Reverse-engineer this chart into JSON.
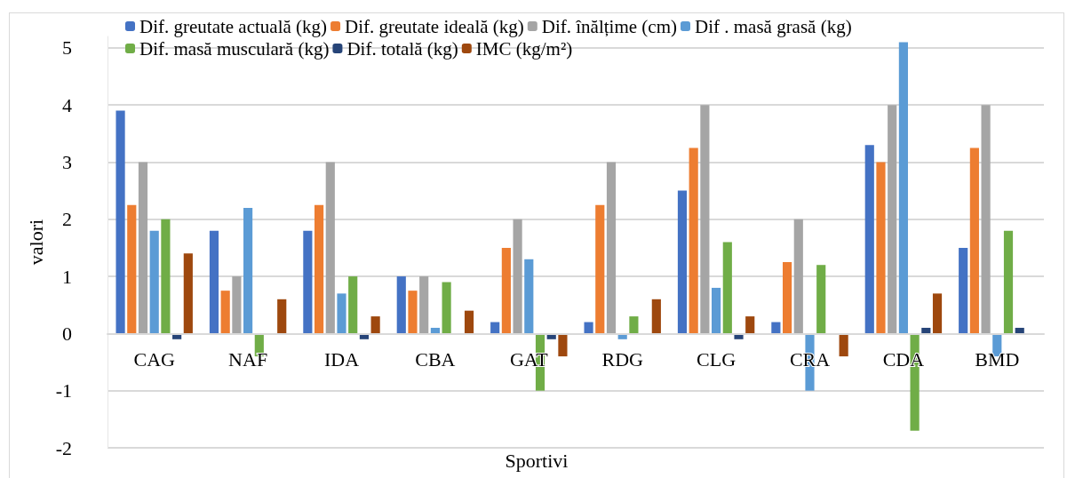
{
  "chart_data": {
    "type": "bar",
    "xlabel": "Sportivi",
    "ylabel": "valori",
    "categories": [
      "CAG",
      "NAF",
      "IDA",
      "CBA",
      "GAT",
      "RDG",
      "CLG",
      "CRA",
      "CDA",
      "BMD"
    ],
    "series": [
      {
        "name": "Dif. greutate actuală (kg)",
        "color": "#4472c4",
        "values": [
          3.9,
          1.8,
          1.8,
          1,
          0.2,
          0.2,
          2.5,
          0.2,
          3.3,
          1.5
        ]
      },
      {
        "name": "Dif. greutate ideală (kg)",
        "color": "#ed7d31",
        "values": [
          2.25,
          0.75,
          2.25,
          0.75,
          1.5,
          2.25,
          3.25,
          1.25,
          3,
          3.25
        ]
      },
      {
        "name": "Dif. înălțime (cm)",
        "color": "#a5a5a5",
        "values": [
          3,
          1,
          3,
          1,
          2,
          3,
          4,
          2,
          4,
          4
        ]
      },
      {
        "name": "Dif . masă grasă (kg)",
        "color": "#5b9bd5",
        "values": [
          1.8,
          2.2,
          0.7,
          0.1,
          1.3,
          -0.1,
          0.8,
          -1,
          5.1,
          -0.4
        ]
      },
      {
        "name": "Dif. masă musculară (kg)",
        "color": "#70ad47",
        "values": [
          2,
          -0.4,
          1,
          0.9,
          -1,
          0.3,
          1.6,
          1.2,
          -1.7,
          1.8
        ]
      },
      {
        "name": "Dif. totală (kg)",
        "color": "#264478",
        "values": [
          -0.1,
          0,
          -0.1,
          0,
          -0.1,
          0,
          -0.1,
          0,
          0.1,
          0.1
        ]
      },
      {
        "name": "IMC (kg/m²)",
        "color": "#9e480e",
        "values": [
          1.4,
          0.6,
          0.3,
          0.4,
          -0.4,
          0.6,
          0.3,
          -0.4,
          0.7,
          0
        ]
      }
    ],
    "ylim": [
      -2,
      5.2
    ],
    "yticks": [
      -2,
      -1,
      0,
      1,
      2,
      3,
      4,
      5
    ],
    "grid": "y",
    "legend": "top"
  }
}
